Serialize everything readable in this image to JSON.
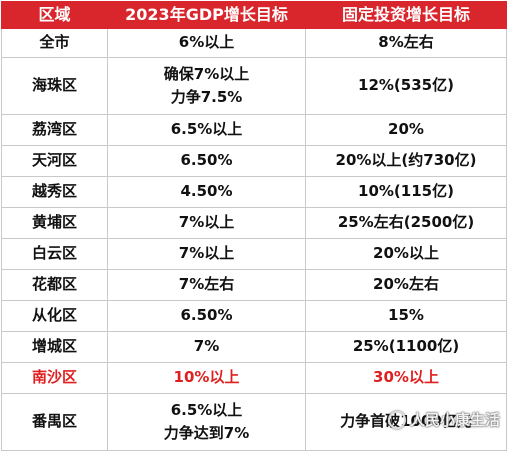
{
  "headers": [
    "区域",
    "2023年GDP增长目标",
    "固定投资增长目标"
  ],
  "rows": [
    {
      "district": "全市",
      "gdp": [
        "6%以上"
      ],
      "invest": "8%左右"
    },
    {
      "district": "海珠区",
      "gdp": [
        "确保7%以上",
        "力争7.5%"
      ],
      "invest": "12%(535亿)"
    },
    {
      "district": "荔湾区",
      "gdp": [
        "6.5%以上"
      ],
      "invest": "20%"
    },
    {
      "district": "天河区",
      "gdp": [
        "6.50%"
      ],
      "invest": "20%以上(约730亿)"
    },
    {
      "district": "越秀区",
      "gdp": [
        "4.50%"
      ],
      "invest": "10%(115亿)"
    },
    {
      "district": "黄埔区",
      "gdp": [
        "7%以上"
      ],
      "invest": "25%左右(2500亿)"
    },
    {
      "district": "白云区",
      "gdp": [
        "7%以上"
      ],
      "invest": "20%以上"
    },
    {
      "district": "花都区",
      "gdp": [
        "7%左右"
      ],
      "invest": "20%左右"
    },
    {
      "district": "从化区",
      "gdp": [
        "6.50%"
      ],
      "invest": "15%"
    },
    {
      "district": "增城区",
      "gdp": [
        "7%"
      ],
      "invest": "25%(1100亿)"
    },
    {
      "district": "南沙区",
      "gdp": [
        "10%以上"
      ],
      "invest": "30%以上",
      "highlight": true
    },
    {
      "district": "番禺区",
      "gdp": [
        "6.5%以上",
        "力争达到7%"
      ],
      "invest": "力争首破1000亿元"
    }
  ],
  "colors": {
    "header_bg": "#d9262c",
    "highlight_text": "#e02020"
  },
  "watermark": "人民小康生活"
}
